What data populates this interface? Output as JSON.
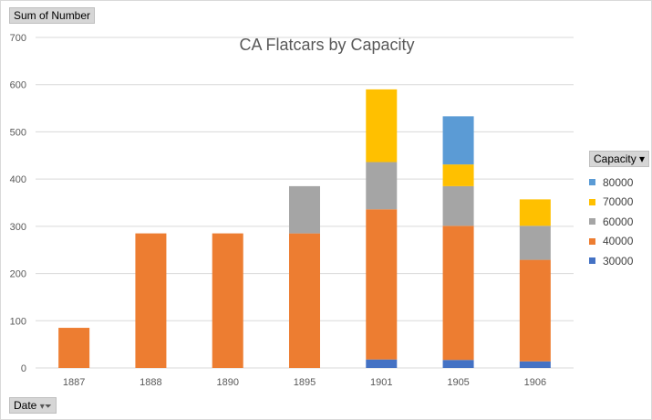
{
  "value_button": "Sum of Number",
  "axis_button": "Date",
  "legend_button": "Capacity",
  "chart_data": {
    "type": "bar",
    "stacked": true,
    "title": "CA Flatcars by Capacity",
    "categories": [
      "1887",
      "1888",
      "1890",
      "1895",
      "1901",
      "1905",
      "1906"
    ],
    "ylim": [
      0,
      700
    ],
    "yticks": [
      "0",
      "100",
      "200",
      "300",
      "400",
      "500",
      "600",
      "700"
    ],
    "grid": true,
    "legend_position": "right",
    "series": [
      {
        "name": "30000",
        "color": "#4472c4",
        "values": [
          0,
          0,
          0,
          0,
          18,
          17,
          14
        ]
      },
      {
        "name": "40000",
        "color": "#ed7d31",
        "values": [
          85,
          285,
          285,
          285,
          318,
          284,
          215
        ]
      },
      {
        "name": "60000",
        "color": "#a5a5a5",
        "values": [
          0,
          0,
          0,
          100,
          100,
          84,
          72
        ]
      },
      {
        "name": "70000",
        "color": "#ffc000",
        "values": [
          0,
          0,
          0,
          0,
          154,
          46,
          56
        ]
      },
      {
        "name": "80000",
        "color": "#5b9bd5",
        "values": [
          0,
          0,
          0,
          0,
          0,
          102,
          0
        ]
      }
    ]
  }
}
